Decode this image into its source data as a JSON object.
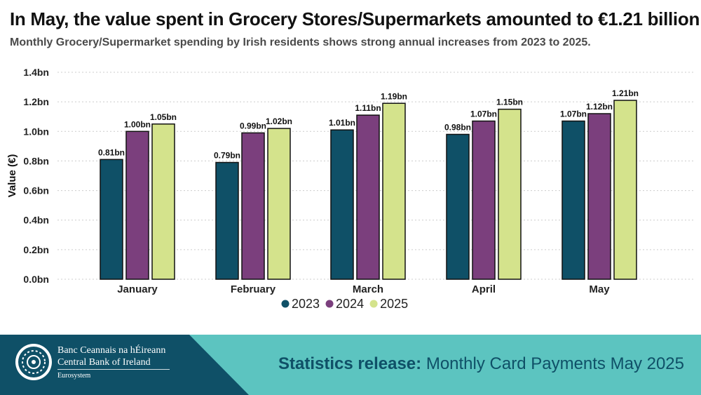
{
  "header": {
    "title": "In May, the value spent in Grocery Stores/Supermarkets amounted to €1.21 billion",
    "subtitle": "Monthly Grocery/Supermarket spending by Irish residents shows strong annual increases from 2023 to 2025."
  },
  "chart_data": {
    "type": "bar",
    "categories": [
      "January",
      "February",
      "March",
      "April",
      "May"
    ],
    "series": [
      {
        "name": "2023",
        "color": "#0f5067",
        "values": [
          0.81,
          0.79,
          1.01,
          0.98,
          1.07
        ],
        "labels": [
          "0.81bn",
          "0.79bn",
          "1.01bn",
          "0.98bn",
          "1.07bn"
        ]
      },
      {
        "name": "2024",
        "color": "#7b3f7d",
        "values": [
          1.0,
          0.99,
          1.11,
          1.07,
          1.12
        ],
        "labels": [
          "1.00bn",
          "0.99bn",
          "1.11bn",
          "1.07bn",
          "1.12bn"
        ]
      },
      {
        "name": "2025",
        "color": "#d4e38c",
        "values": [
          1.05,
          1.02,
          1.19,
          1.15,
          1.21
        ],
        "labels": [
          "1.05bn",
          "1.02bn",
          "1.19bn",
          "1.15bn",
          "1.21bn"
        ]
      }
    ],
    "ylabel": "Value (€)",
    "xlabel": "",
    "ylim": [
      0,
      1.4
    ],
    "yticks": [
      0,
      0.2,
      0.4,
      0.6,
      0.8,
      1.0,
      1.2,
      1.4
    ],
    "ytick_labels": [
      "0.0bn",
      "0.2bn",
      "0.4bn",
      "0.6bn",
      "0.8bn",
      "1.0bn",
      "1.2bn",
      "1.4bn"
    ],
    "grid": true,
    "legend_position": "bottom-center"
  },
  "footer": {
    "bank_name_irish": "Banc Ceannais na hÉireann",
    "bank_name_english": "Central Bank of Ireland",
    "bank_sub": "Eurosystem",
    "release_label": "Statistics release:",
    "release_text": "Monthly Card Payments May 2025"
  }
}
